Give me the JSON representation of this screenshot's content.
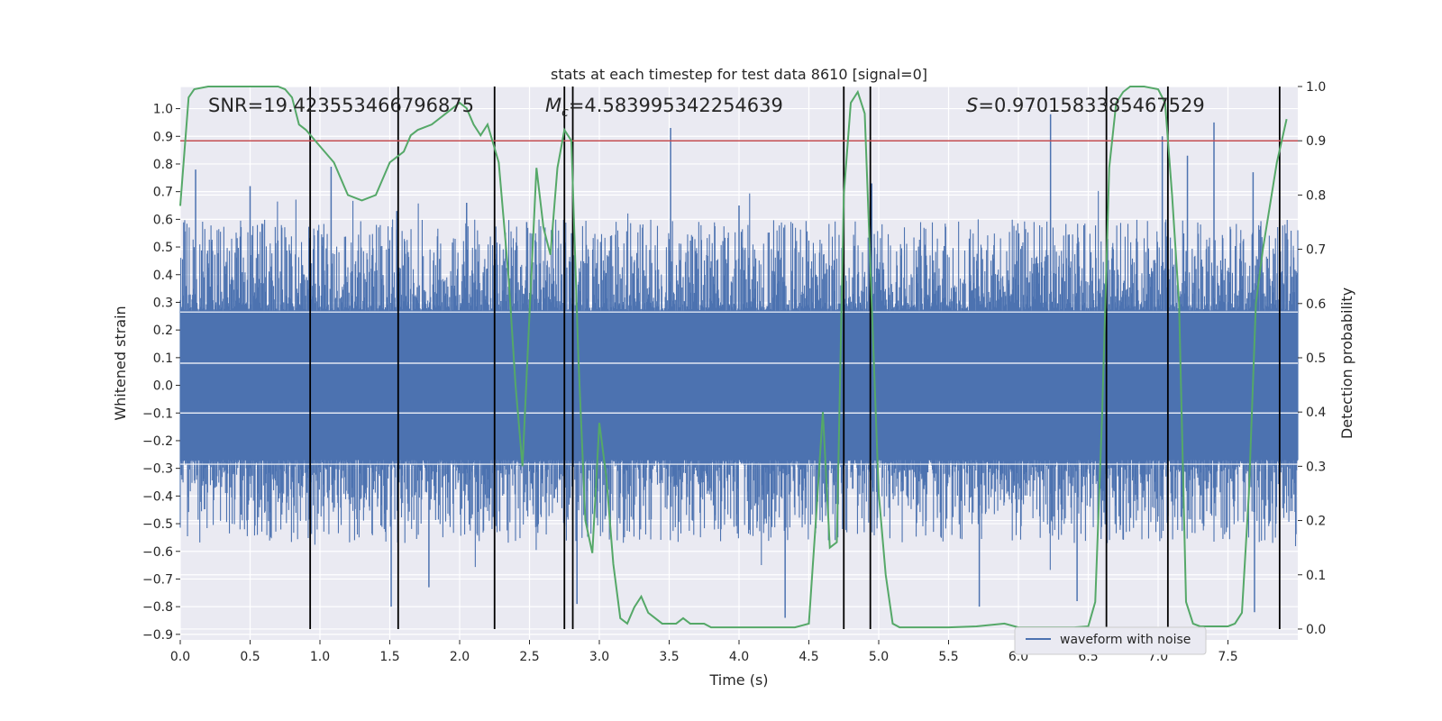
{
  "chart_data": {
    "type": "line",
    "title": "stats at each timestep for test data 8610 [signal=0]",
    "xlabel": "Time (s)",
    "ylabel": "Whitened strain",
    "y2label": "Detection probability",
    "xlim": [
      0.0,
      8.0
    ],
    "ylim": [
      -0.92,
      1.08
    ],
    "y2lim": [
      -0.02,
      1.0
    ],
    "xticks": [
      "0.0",
      "0.5",
      "1.0",
      "1.5",
      "2.0",
      "2.5",
      "3.0",
      "3.5",
      "4.0",
      "4.5",
      "5.0",
      "5.5",
      "6.0",
      "6.5",
      "7.0",
      "7.5"
    ],
    "yticks": [
      "1.0",
      "0.9",
      "0.8",
      "0.7",
      "0.6",
      "0.5",
      "0.4",
      "0.3",
      "0.2",
      "0.1",
      "0.0",
      "−0.1",
      "−0.2",
      "−0.3",
      "−0.4",
      "−0.5",
      "−0.6",
      "−0.7",
      "−0.8",
      "−0.9"
    ],
    "y2ticks": [
      "1.0",
      "0.9",
      "0.8",
      "0.7",
      "0.6",
      "0.5",
      "0.4",
      "0.3",
      "0.2",
      "0.1",
      "0.0"
    ],
    "annotations": {
      "snr": "SNR=19.423553466796875",
      "mc_symbol": "M",
      "mc_sub": "c",
      "mc_value": "=4.583995342254639",
      "s_symbol": "S",
      "s_value": "=0.9701583385467529"
    },
    "grid": true,
    "legend_position": "lower-right",
    "legend": [
      "waveform with noise"
    ],
    "threshold": 0.9,
    "colors": {
      "background": "#eaeaf2",
      "grid": "#ffffff",
      "waveform": "#4c72b0",
      "probability": "#55a868",
      "threshold": "#c44e52",
      "event_line": "#000000"
    },
    "event_lines": [
      0.93,
      1.56,
      2.25,
      2.75,
      2.81,
      4.75,
      4.94,
      6.63,
      7.07,
      7.87
    ],
    "waveform_spikes": [
      {
        "x": 0.11,
        "y": 0.78
      },
      {
        "x": 0.5,
        "y": 0.72
      },
      {
        "x": 1.08,
        "y": 0.79
      },
      {
        "x": 1.55,
        "y": 0.63
      },
      {
        "x": 2.05,
        "y": 0.66
      },
      {
        "x": 2.48,
        "y": 0.59
      },
      {
        "x": 3.51,
        "y": 0.93
      },
      {
        "x": 4.0,
        "y": 0.65
      },
      {
        "x": 4.95,
        "y": 0.73
      },
      {
        "x": 6.23,
        "y": 0.98
      },
      {
        "x": 7.03,
        "y": 0.9
      },
      {
        "x": 7.21,
        "y": 0.83
      },
      {
        "x": 7.4,
        "y": 0.95
      },
      {
        "x": 7.68,
        "y": 0.77
      },
      {
        "x": 1.51,
        "y": -0.8
      },
      {
        "x": 1.78,
        "y": -0.73
      },
      {
        "x": 2.84,
        "y": -0.79
      },
      {
        "x": 4.33,
        "y": -0.84
      },
      {
        "x": 5.72,
        "y": -0.8
      },
      {
        "x": 7.69,
        "y": -0.82
      },
      {
        "x": 6.42,
        "y": -0.78
      }
    ],
    "probability": {
      "x": [
        0.0,
        0.06,
        0.1,
        0.2,
        0.3,
        0.4,
        0.5,
        0.6,
        0.7,
        0.75,
        0.8,
        0.85,
        0.9,
        1.0,
        1.1,
        1.2,
        1.3,
        1.4,
        1.5,
        1.6,
        1.65,
        1.7,
        1.8,
        1.9,
        2.0,
        2.05,
        2.1,
        2.15,
        2.2,
        2.28,
        2.35,
        2.4,
        2.45,
        2.5,
        2.55,
        2.6,
        2.65,
        2.7,
        2.75,
        2.8,
        2.85,
        2.9,
        2.95,
        3.0,
        3.05,
        3.1,
        3.15,
        3.2,
        3.25,
        3.3,
        3.35,
        3.4,
        3.45,
        3.5,
        3.55,
        3.6,
        3.65,
        3.7,
        3.75,
        3.8,
        3.9,
        4.0,
        4.1,
        4.2,
        4.3,
        4.4,
        4.5,
        4.55,
        4.6,
        4.65,
        4.7,
        4.75,
        4.8,
        4.85,
        4.9,
        4.95,
        5.0,
        5.05,
        5.1,
        5.15,
        5.2,
        5.25,
        5.3,
        5.5,
        5.7,
        5.9,
        6.0,
        6.1,
        6.2,
        6.3,
        6.4,
        6.5,
        6.55,
        6.6,
        6.65,
        6.7,
        6.75,
        6.8,
        6.9,
        7.0,
        7.05,
        7.1,
        7.15,
        7.2,
        7.25,
        7.3,
        7.4,
        7.5,
        7.55,
        7.6,
        7.65,
        7.7,
        7.75,
        7.8,
        7.85,
        7.92
      ],
      "y": [
        0.78,
        0.98,
        0.995,
        1.0,
        1.0,
        1.0,
        1.0,
        1.0,
        1.0,
        0.995,
        0.98,
        0.93,
        0.92,
        0.89,
        0.86,
        0.8,
        0.79,
        0.8,
        0.86,
        0.88,
        0.91,
        0.92,
        0.93,
        0.95,
        0.97,
        0.96,
        0.93,
        0.91,
        0.93,
        0.86,
        0.65,
        0.45,
        0.3,
        0.58,
        0.85,
        0.74,
        0.69,
        0.85,
        0.92,
        0.9,
        0.5,
        0.2,
        0.14,
        0.38,
        0.28,
        0.12,
        0.02,
        0.01,
        0.04,
        0.06,
        0.03,
        0.02,
        0.01,
        0.01,
        0.01,
        0.02,
        0.01,
        0.01,
        0.01,
        0.003,
        0.003,
        0.003,
        0.003,
        0.003,
        0.003,
        0.003,
        0.01,
        0.2,
        0.4,
        0.15,
        0.16,
        0.8,
        0.97,
        0.99,
        0.95,
        0.6,
        0.25,
        0.1,
        0.01,
        0.003,
        0.003,
        0.003,
        0.003,
        0.003,
        0.005,
        0.01,
        0.003,
        0.003,
        0.003,
        0.003,
        0.003,
        0.005,
        0.05,
        0.4,
        0.85,
        0.97,
        0.99,
        1.0,
        1.0,
        0.995,
        0.97,
        0.8,
        0.6,
        0.05,
        0.01,
        0.005,
        0.005,
        0.005,
        0.01,
        0.03,
        0.25,
        0.6,
        0.7,
        0.78,
        0.86,
        0.94
      ]
    }
  }
}
